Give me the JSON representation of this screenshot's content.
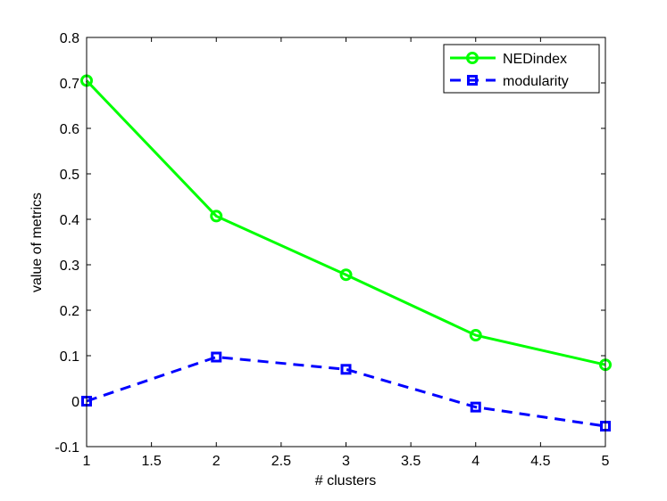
{
  "chart_data": {
    "type": "line",
    "title": "",
    "xlabel": "# clusters",
    "ylabel": "value of metrics",
    "x": [
      1,
      2,
      3,
      4,
      5
    ],
    "xlim": [
      1,
      5
    ],
    "ylim": [
      -0.1,
      0.8
    ],
    "xticks": [
      "1",
      "1.5",
      "2",
      "2.5",
      "3",
      "3.5",
      "4",
      "4.5",
      "5"
    ],
    "yticks": [
      "-0.1",
      "0",
      "0.1",
      "0.2",
      "0.3",
      "0.4",
      "0.5",
      "0.6",
      "0.7",
      "0.8"
    ],
    "grid": false,
    "legend_position": "top-right",
    "series": [
      {
        "name": "NEDindex",
        "values": [
          0.705,
          0.407,
          0.278,
          0.145,
          0.08
        ],
        "color": "#00ff00",
        "line_style": "solid",
        "marker": "circle"
      },
      {
        "name": "modularity",
        "values": [
          0.0,
          0.097,
          0.07,
          -0.013,
          -0.055
        ],
        "color": "#0000ff",
        "line_style": "dashed",
        "marker": "square"
      }
    ]
  }
}
